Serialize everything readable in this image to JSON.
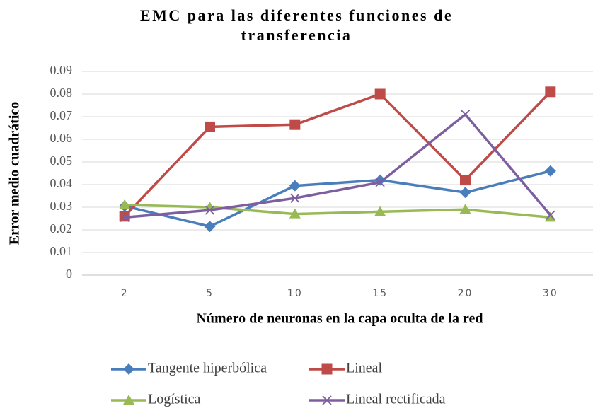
{
  "chart_data": {
    "type": "line",
    "title": "EMC para las diferentes funciones de transferencia",
    "x_label": "Número de neuronas en la capa oculta de la red",
    "y_label": "Error medio cuadrático",
    "categories": [
      "2",
      "5",
      "10",
      "15",
      "20",
      "30"
    ],
    "series": [
      {
        "name": "Tangente hiperbólica",
        "color": "#4a7ebb",
        "marker": "diamond",
        "values": [
          0.0305,
          0.0215,
          0.0395,
          0.042,
          0.0365,
          0.046
        ]
      },
      {
        "name": "Lineal",
        "color": "#be4b48",
        "marker": "square",
        "values": [
          0.026,
          0.0655,
          0.0665,
          0.08,
          0.042,
          0.081
        ]
      },
      {
        "name": "Logística",
        "color": "#98b954",
        "marker": "triangle",
        "values": [
          0.031,
          0.03,
          0.027,
          0.028,
          0.029,
          0.0255
        ]
      },
      {
        "name": "Lineal rectificada",
        "color": "#7d5fa0",
        "marker": "x",
        "values": [
          0.0255,
          0.0287,
          0.034,
          0.041,
          0.071,
          0.0265
        ]
      }
    ],
    "ylim": [
      0,
      0.09
    ],
    "yticks": [
      0,
      0.01,
      0.02,
      0.03,
      0.04,
      0.05,
      0.06,
      0.07,
      0.08,
      0.09
    ],
    "grid": true
  }
}
